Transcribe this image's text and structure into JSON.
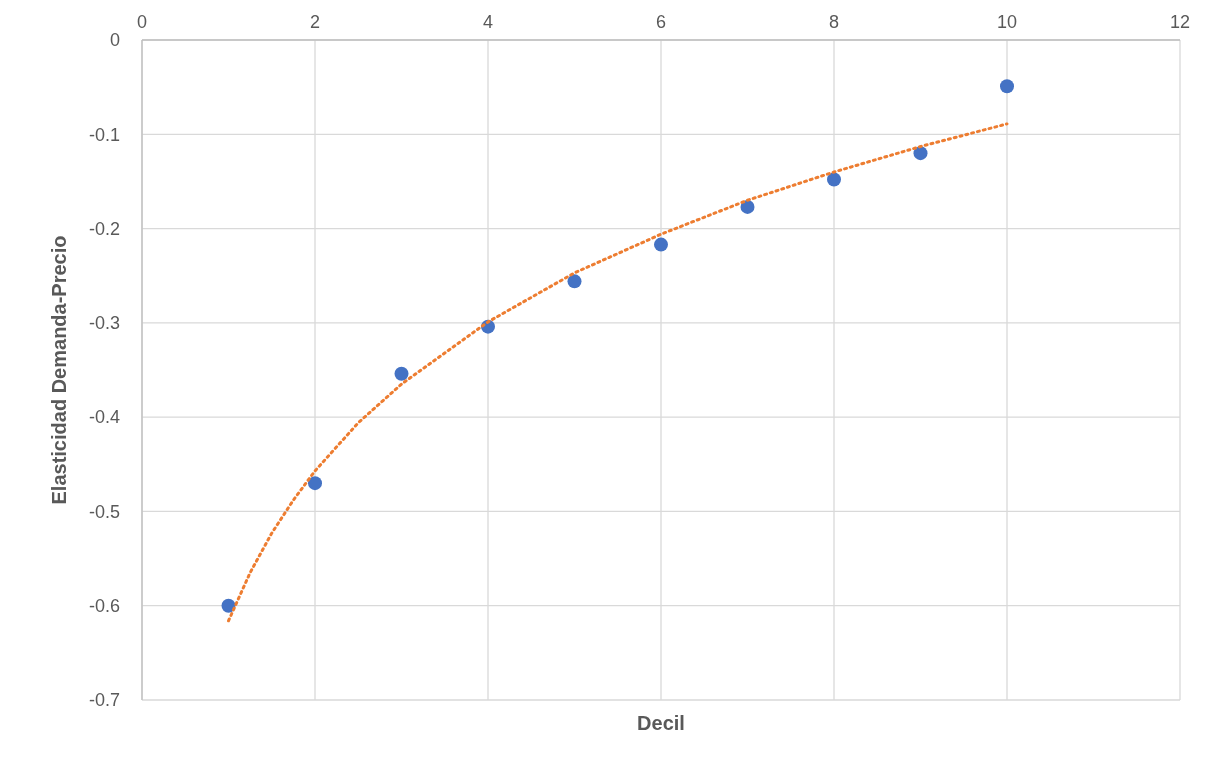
{
  "chart_data": {
    "type": "scatter",
    "xlabel": "Decil",
    "ylabel": "Elasticidad Demanda-Precio",
    "x": [
      1,
      2,
      3,
      4,
      5,
      6,
      7,
      8,
      9,
      10
    ],
    "xlim": [
      0,
      12
    ],
    "xticks": [
      0,
      2,
      4,
      6,
      8,
      10,
      12
    ],
    "ylim": [
      -0.7,
      0
    ],
    "yticks": [
      -0.7,
      -0.6,
      -0.5,
      -0.4,
      -0.3,
      -0.2,
      -0.1,
      0
    ],
    "grid": true,
    "marker": "circle",
    "series": [
      {
        "color": "#4472c4",
        "values": [
          -0.6,
          -0.47,
          -0.354,
          -0.304,
          -0.256,
          -0.217,
          -0.177,
          -0.148,
          -0.12,
          -0.049
        ]
      },
      {
        "type": "line",
        "color": "#ed7d31",
        "line_style": "dotted",
        "marker": "none",
        "x": [
          1,
          1.25,
          1.5,
          1.75,
          2,
          2.5,
          3,
          4,
          5,
          6,
          7,
          8,
          9,
          10
        ],
        "values": [
          -0.616,
          -0.565,
          -0.523,
          -0.488,
          -0.457,
          -0.406,
          -0.365,
          -0.299,
          -0.247,
          -0.206,
          -0.17,
          -0.14,
          -0.113,
          -0.089
        ]
      }
    ]
  }
}
